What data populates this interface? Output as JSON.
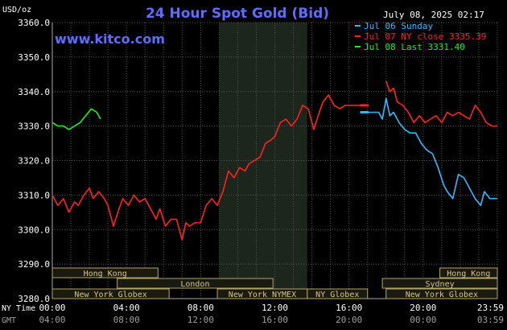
{
  "chart_data": {
    "type": "line",
    "title": "24 Hour Spot Gold (Bid)",
    "site": "www.kitco.com",
    "timestamp": "July 08, 2025 02:17",
    "y_unit": "USD/oz",
    "ylim": [
      3280,
      3360
    ],
    "y_ticks": [
      "3360.0",
      "3350.0",
      "3340.0",
      "3330.0",
      "3320.0",
      "3310.0",
      "3300.0",
      "3290.0",
      "3280.0"
    ],
    "x_rows": [
      {
        "name": "NY Time",
        "ticks": [
          "00:00",
          "04:00",
          "08:00",
          "12:00",
          "16:00",
          "20:00",
          "23:59"
        ]
      },
      {
        "name": "GMT",
        "ticks": [
          "04:00",
          "08:00",
          "12:00",
          "16:00",
          "20:00",
          "00:00",
          "03:59"
        ]
      }
    ],
    "legend": [
      {
        "label": "Jul 06 Sunday",
        "color": "#33bbff"
      },
      {
        "label": "Jul 07 NY close 3335.39",
        "color": "#ff2222"
      },
      {
        "label": "Jul 08 Last 3331.40",
        "color": "#22ee22"
      }
    ],
    "shaded_period": {
      "start_hour": 9.0,
      "end_hour": 13.75,
      "color": "#1c261c"
    },
    "markets": [
      {
        "label": "Hong Kong",
        "start": 0.0,
        "end": 5.7,
        "row": 0
      },
      {
        "label": "London",
        "start": 3.5,
        "end": 11.9,
        "row": 1
      },
      {
        "label": "New York Globex",
        "start": 0.0,
        "end": 6.3,
        "row": 2
      },
      {
        "label": "New York NYMEX",
        "start": 8.9,
        "end": 13.75,
        "row": 2
      },
      {
        "label": "NY Globex",
        "start": 13.75,
        "end": 17.0,
        "row": 2
      },
      {
        "label": "Hong Kong",
        "start": 20.9,
        "end": 24.0,
        "row": 0
      },
      {
        "label": "Sydney",
        "start": 17.8,
        "end": 24.0,
        "row": 1
      },
      {
        "label": "New York Globex",
        "start": 18.0,
        "end": 24.0,
        "row": 2
      }
    ],
    "series": [
      {
        "color": "#ff2222",
        "x": [
          0,
          0.3,
          0.6,
          0.9,
          1.2,
          1.4,
          1.7,
          2.0,
          2.2,
          2.5,
          2.8,
          3.0,
          3.3,
          3.6,
          3.8,
          4.1,
          4.4,
          4.7,
          5.0,
          5.3,
          5.6,
          5.8,
          6.1,
          6.4,
          6.7,
          7.0,
          7.2,
          7.4,
          7.7,
          8.0,
          8.3,
          8.6,
          8.9,
          9.2,
          9.5,
          9.8,
          10.1,
          10.4,
          10.6,
          10.9,
          11.2,
          11.5,
          11.8,
          12.0,
          12.3,
          12.6,
          12.9,
          13.2,
          13.5,
          13.8,
          14.1,
          14.4,
          14.6,
          14.9,
          15.2,
          15.5,
          15.8,
          16.1,
          16.4,
          16.7,
          17.0
        ],
        "y": [
          3310,
          3307,
          3309,
          3305,
          3308,
          3307,
          3310,
          3312,
          3309,
          3311,
          3309,
          3307,
          3301,
          3306,
          3309,
          3307,
          3310,
          3308,
          3309,
          3306,
          3303,
          3306,
          3301,
          3303,
          3303,
          3297,
          3302,
          3301,
          3302,
          3302,
          3307,
          3309,
          3307,
          3311,
          3317,
          3315,
          3318,
          3317,
          3319,
          3320,
          3321,
          3325,
          3326,
          3327,
          3331,
          3332,
          3330,
          3332,
          3336,
          3335,
          3329,
          3334,
          3337,
          3339,
          3336,
          3335,
          3336,
          3336,
          3336,
          3336,
          3336
        ]
      },
      {
        "color": "#ff2222",
        "x": [
          18.0,
          18.2,
          18.4,
          18.6,
          18.9,
          19.2,
          19.5,
          19.8,
          20.1,
          20.4,
          20.7,
          21.0,
          21.3,
          21.6,
          21.9,
          22.2,
          22.5,
          22.8,
          23.1,
          23.4,
          23.7,
          23.99
        ],
        "y": [
          3343,
          3340,
          3341,
          3337,
          3336,
          3334,
          3331,
          3333,
          3331,
          3332,
          3333,
          3331,
          3334,
          3333,
          3334,
          3333,
          3332,
          3336,
          3334,
          3331,
          3330,
          3330
        ]
      },
      {
        "color": "#33bbff",
        "x": [
          16.7,
          17.0,
          17.2,
          17.6,
          17.8,
          18.0,
          18.2,
          18.4,
          18.7,
          19.0,
          19.3,
          19.6,
          19.9,
          20.2,
          20.5,
          20.8,
          21.1,
          21.3,
          21.6,
          21.9,
          22.2,
          22.5,
          22.8,
          23.1,
          23.3,
          23.6,
          23.99
        ],
        "y": [
          3334,
          3334,
          3334,
          3334,
          3332,
          3338,
          3333,
          3334,
          3331,
          3329,
          3328,
          3328,
          3325,
          3323,
          3322,
          3318,
          3313,
          3311,
          3309,
          3316,
          3315,
          3312,
          3309,
          3307,
          3311,
          3309,
          3309
        ]
      },
      {
        "color": "#22ee22",
        "x": [
          0,
          0.3,
          0.6,
          0.9,
          1.2,
          1.5,
          1.8,
          2.1,
          2.4,
          2.6
        ],
        "y": [
          3331,
          3330,
          3330,
          3329,
          3330,
          3331,
          3333,
          3335,
          3334,
          3332
        ]
      }
    ]
  }
}
